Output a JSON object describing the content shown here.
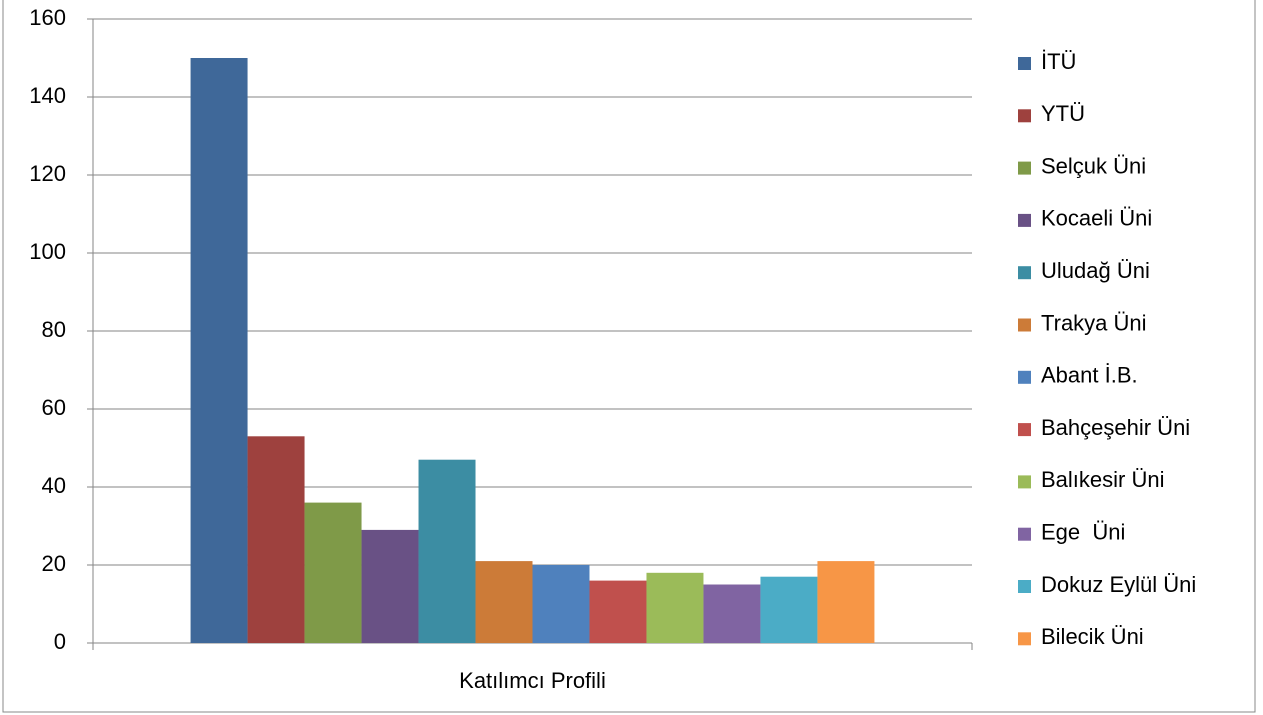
{
  "chart_data": {
    "type": "bar",
    "categories": [
      "Katılımcı Profili"
    ],
    "series": [
      {
        "name": "İTÜ",
        "color": "#3f6899",
        "values": [
          150
        ]
      },
      {
        "name": "YTÜ",
        "color": "#9e413e",
        "values": [
          53
        ]
      },
      {
        "name": "Selçuk Üni",
        "color": "#7f9a48",
        "values": [
          36
        ]
      },
      {
        "name": "Kocaeli Üni",
        "color": "#695185",
        "values": [
          29
        ]
      },
      {
        "name": "Uludağ Üni",
        "color": "#3c8da3",
        "values": [
          47
        ]
      },
      {
        "name": "Trakya Üni",
        "color": "#cc7b38",
        "values": [
          21
        ]
      },
      {
        "name": "Abant İ.B.",
        "color": "#4f81bd",
        "values": [
          20
        ]
      },
      {
        "name": "Bahçeşehir Üni",
        "color": "#c0504d",
        "values": [
          16
        ]
      },
      {
        "name": "Balıkesir Üni",
        "color": "#9bbb59",
        "values": [
          18
        ]
      },
      {
        "name": "Ege  Üni",
        "color": "#8064a2",
        "values": [
          15
        ]
      },
      {
        "name": "Dokuz Eylül Üni",
        "color": "#4bacc6",
        "values": [
          17
        ]
      },
      {
        "name": "Bilecik Üni",
        "color": "#f79646",
        "values": [
          21
        ]
      }
    ],
    "ylim": [
      0,
      160
    ],
    "yticks": [
      0,
      20,
      40,
      60,
      80,
      100,
      120,
      140,
      160
    ],
    "grid": true,
    "legend": "right"
  }
}
